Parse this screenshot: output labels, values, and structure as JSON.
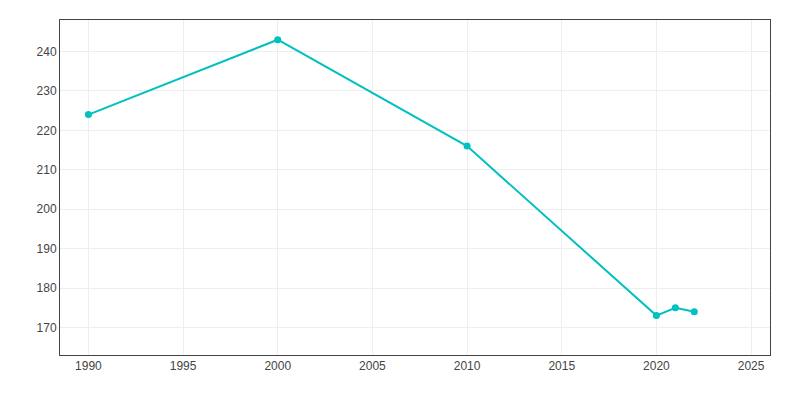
{
  "chart_data": {
    "type": "line",
    "x": [
      1990,
      2000,
      2010,
      2020,
      2021,
      2022
    ],
    "values": [
      224,
      243,
      216,
      173,
      175,
      174
    ],
    "color": "#00C0C0",
    "marker": "circle",
    "xlim": [
      1988.5,
      2026
    ],
    "ylim": [
      163,
      248
    ],
    "xticks": [
      1990,
      1995,
      2000,
      2005,
      2010,
      2015,
      2020,
      2025
    ],
    "yticks": [
      170,
      180,
      190,
      200,
      210,
      220,
      230,
      240
    ],
    "grid": true
  }
}
